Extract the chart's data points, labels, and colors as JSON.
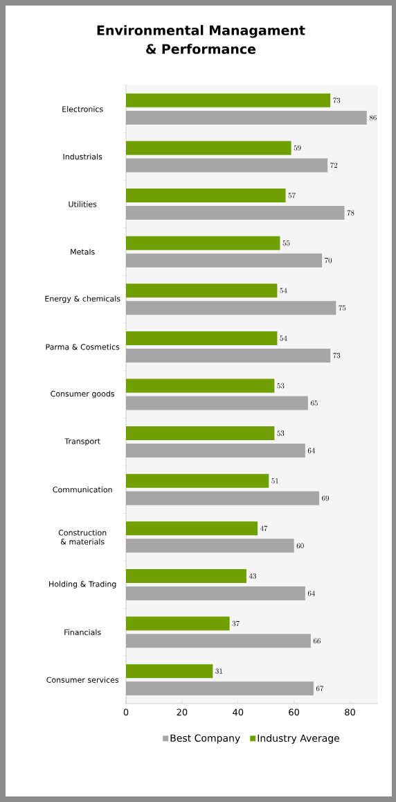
{
  "chart_data": {
    "type": "bar",
    "orientation": "horizontal",
    "title": "Environmental Managament & Performance",
    "categories": [
      "Electronics",
      "Industrials",
      "Utilities",
      "Metals",
      "Energy & chemicals",
      "Parma & Cosmetics",
      "Consumer goods",
      "Transport",
      "Communication",
      "Construction & materials",
      "Holding & Trading",
      "Financials",
      "Consumer services"
    ],
    "series": [
      {
        "name": "Best Company",
        "color": "#a6a6a6",
        "values": [
          86,
          72,
          78,
          70,
          75,
          73,
          65,
          64,
          69,
          60,
          64,
          66,
          67
        ]
      },
      {
        "name": "Industry Average",
        "color": "#6f9f00",
        "values": [
          73,
          59,
          57,
          55,
          54,
          54,
          53,
          53,
          51,
          47,
          43,
          37,
          31
        ]
      }
    ],
    "xlim": [
      0,
      90
    ],
    "xticks": [
      0,
      20,
      40,
      60,
      80
    ],
    "data_labels": true,
    "legend": "bottom",
    "grid": false
  }
}
